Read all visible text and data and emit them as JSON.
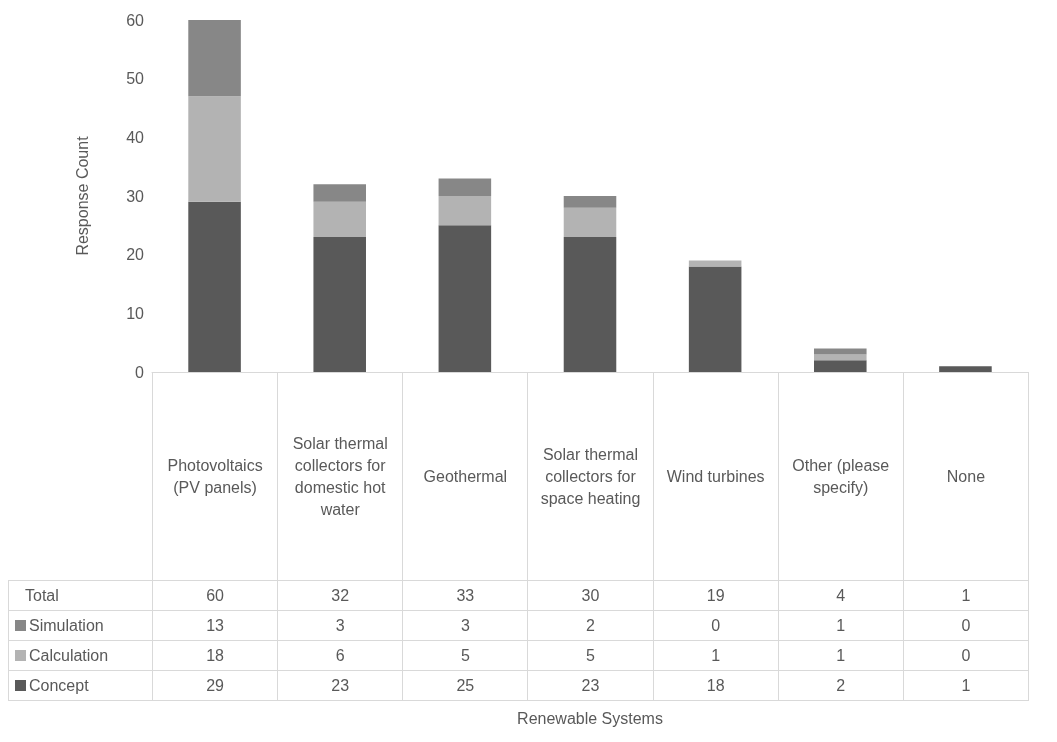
{
  "chart_data": {
    "type": "bar",
    "stacked": true,
    "ylabel": "Response Count",
    "categories": [
      "Photovoltaics (PV panels)",
      "Solar thermal collectors for domestic hot water",
      "Geothermal",
      "Solar thermal collectors for space heating",
      "Wind turbines",
      "Other (please specify)",
      "None"
    ],
    "series": [
      {
        "name": "Concept",
        "color": "#595959",
        "values": [
          29,
          23,
          25,
          23,
          18,
          2,
          1
        ]
      },
      {
        "name": "Calculation",
        "color": "#b3b3b3",
        "values": [
          18,
          6,
          5,
          5,
          1,
          1,
          0
        ]
      },
      {
        "name": "Simulation",
        "color": "#878787",
        "values": [
          13,
          3,
          3,
          2,
          0,
          1,
          0
        ]
      }
    ],
    "annotations": [
      "Total",
      "60",
      "32",
      "33",
      "30",
      "19",
      "4",
      "1",
      "Renewable Systems"
    ],
    "ylim": [
      0,
      60
    ],
    "yticks": [
      0,
      10,
      20,
      30,
      40,
      50,
      60
    ],
    "data_labels": true,
    "legend": "bottom",
    "grid": false
  }
}
